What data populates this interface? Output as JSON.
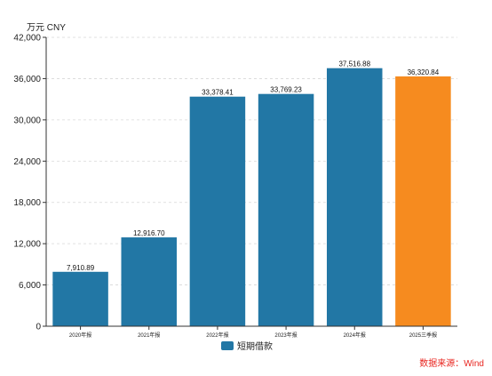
{
  "chart_data": {
    "type": "bar",
    "unit": "万元  CNY",
    "categories": [
      "2020年报",
      "2021年报",
      "2022年报",
      "2023年报",
      "2024年报",
      "2025三季报"
    ],
    "series": [
      {
        "name": "短期借款",
        "values": [
          7910.89,
          12916.7,
          33378.41,
          33769.23,
          37516.88,
          36320.84
        ],
        "labels": [
          "7,910.89",
          "12,916.70",
          "33,378.41",
          "33,769.23",
          "37,516.88",
          "36,320.84"
        ]
      }
    ],
    "ylim": [
      0,
      42000
    ],
    "yticks": [
      0,
      6000,
      12000,
      18000,
      24000,
      30000,
      36000,
      42000
    ],
    "ytick_labels": [
      "0",
      "6,000",
      "12,000",
      "18,000",
      "24,000",
      "30,000",
      "36,000",
      "42,000"
    ],
    "grid": true,
    "legend_position": "bottom",
    "colors": {
      "bar": "#2277a5",
      "highlight": "#f68b1f",
      "source": "#e8251f"
    },
    "highlight_index": 5,
    "source": "数据来源：Wind"
  }
}
